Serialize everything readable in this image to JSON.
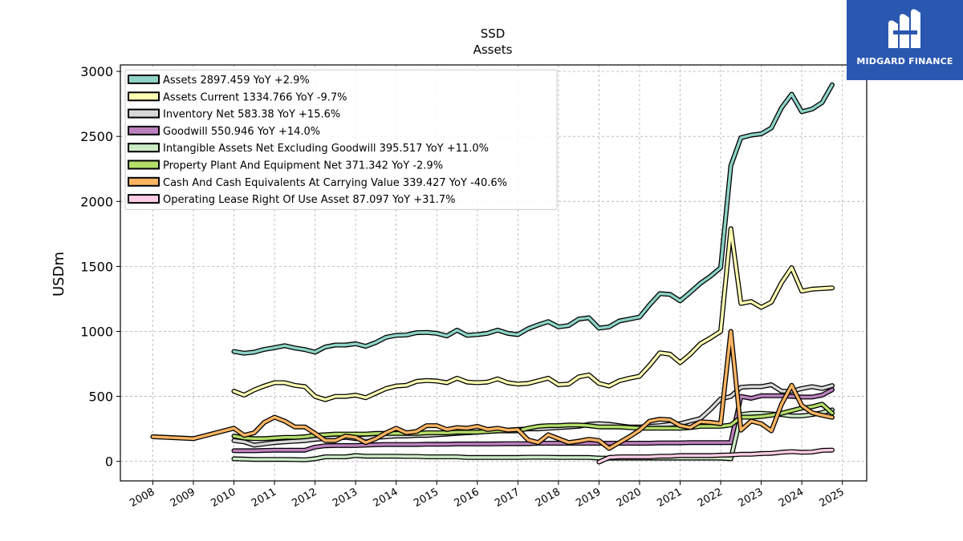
{
  "brand": {
    "name": "MIDGARD FINANCE",
    "bg_color": "#2a57b0"
  },
  "chart_data": {
    "type": "line",
    "title": "SSD",
    "subtitle": "Assets",
    "ylabel": "USDm",
    "xlabel": "",
    "ylim": [
      -150,
      3050
    ],
    "xlim": [
      2007.2,
      2025.6
    ],
    "yticks": [
      0,
      500,
      1000,
      1500,
      2000,
      2500,
      3000
    ],
    "xticks": [
      2008,
      2009,
      2010,
      2011,
      2012,
      2013,
      2014,
      2015,
      2016,
      2017,
      2018,
      2019,
      2020,
      2021,
      2022,
      2023,
      2024,
      2025
    ],
    "grid": true,
    "legend_position": "top-left",
    "series": [
      {
        "name": "Assets  2897.459 YoY +2.9%",
        "color": "#8dd3c7",
        "x": [
          2010.0,
          2010.25,
          2010.5,
          2010.75,
          2011.0,
          2011.25,
          2011.5,
          2011.75,
          2012.0,
          2012.25,
          2012.5,
          2012.75,
          2013.0,
          2013.25,
          2013.5,
          2013.75,
          2014.0,
          2014.25,
          2014.5,
          2014.75,
          2015.0,
          2015.25,
          2015.5,
          2015.75,
          2016.0,
          2016.25,
          2016.5,
          2016.75,
          2017.0,
          2017.25,
          2017.5,
          2017.75,
          2018.0,
          2018.25,
          2018.5,
          2018.75,
          2019.0,
          2019.25,
          2019.5,
          2019.75,
          2020.0,
          2020.25,
          2020.5,
          2020.75,
          2021.0,
          2021.25,
          2021.5,
          2021.75,
          2022.0,
          2022.25,
          2022.5,
          2022.75,
          2023.0,
          2023.25,
          2023.5,
          2023.75,
          2024.0,
          2024.25,
          2024.5,
          2024.75
        ],
        "y": [
          845,
          832,
          840,
          862,
          875,
          890,
          872,
          860,
          840,
          880,
          895,
          895,
          905,
          885,
          915,
          955,
          970,
          972,
          990,
          992,
          985,
          965,
          1010,
          970,
          975,
          985,
          1010,
          985,
          975,
          1020,
          1050,
          1075,
          1035,
          1045,
          1095,
          1105,
          1025,
          1035,
          1080,
          1095,
          1110,
          1205,
          1290,
          1285,
          1235,
          1300,
          1370,
          1425,
          1490,
          2275,
          2490,
          2510,
          2520,
          2565,
          2720,
          2825,
          2690,
          2710,
          2760,
          2897
        ]
      },
      {
        "name": "Assets Current  1334.766 YoY -9.7%",
        "color": "#ffffb3",
        "x": [
          2010.0,
          2010.25,
          2010.5,
          2010.75,
          2011.0,
          2011.25,
          2011.5,
          2011.75,
          2012.0,
          2012.25,
          2012.5,
          2012.75,
          2013.0,
          2013.25,
          2013.5,
          2013.75,
          2014.0,
          2014.25,
          2014.5,
          2014.75,
          2015.0,
          2015.25,
          2015.5,
          2015.75,
          2016.0,
          2016.25,
          2016.5,
          2016.75,
          2017.0,
          2017.25,
          2017.5,
          2017.75,
          2018.0,
          2018.25,
          2018.5,
          2018.75,
          2019.0,
          2019.25,
          2019.5,
          2019.75,
          2020.0,
          2020.25,
          2020.5,
          2020.75,
          2021.0,
          2021.25,
          2021.5,
          2021.75,
          2022.0,
          2022.25,
          2022.5,
          2022.75,
          2023.0,
          2023.25,
          2023.5,
          2023.75,
          2024.0,
          2024.25,
          2024.5,
          2024.75
        ],
        "y": [
          540,
          510,
          550,
          580,
          605,
          605,
          585,
          575,
          500,
          475,
          500,
          500,
          510,
          490,
          525,
          560,
          580,
          585,
          615,
          622,
          618,
          605,
          640,
          610,
          605,
          610,
          635,
          605,
          595,
          600,
          620,
          640,
          590,
          595,
          650,
          665,
          600,
          580,
          620,
          640,
          655,
          740,
          835,
          825,
          760,
          825,
          905,
          950,
          1000,
          1790,
          1215,
          1230,
          1185,
          1225,
          1375,
          1490,
          1310,
          1325,
          1330,
          1335
        ]
      },
      {
        "name": "Inventory Net  583.38 YoY +15.6%",
        "color": "#d9d9d9",
        "x": [
          2010.0,
          2010.25,
          2010.5,
          2010.75,
          2011.0,
          2011.25,
          2011.5,
          2011.75,
          2012.0,
          2012.25,
          2012.5,
          2012.75,
          2013.0,
          2013.25,
          2013.5,
          2013.75,
          2014.0,
          2014.25,
          2014.5,
          2014.75,
          2015.0,
          2015.25,
          2015.5,
          2015.75,
          2016.0,
          2016.25,
          2016.5,
          2016.75,
          2017.0,
          2017.25,
          2017.5,
          2017.75,
          2018.0,
          2018.25,
          2018.5,
          2018.75,
          2019.0,
          2019.25,
          2019.5,
          2019.75,
          2020.0,
          2020.25,
          2020.5,
          2020.75,
          2021.0,
          2021.25,
          2021.5,
          2021.75,
          2022.0,
          2022.25,
          2022.5,
          2022.75,
          2023.0,
          2023.25,
          2023.5,
          2023.75,
          2024.0,
          2024.25,
          2024.5,
          2024.75
        ],
        "y": [
          160,
          150,
          125,
          135,
          145,
          150,
          155,
          160,
          170,
          175,
          180,
          185,
          175,
          180,
          185,
          190,
          195,
          195,
          200,
          200,
          205,
          210,
          215,
          220,
          225,
          230,
          235,
          240,
          245,
          250,
          250,
          255,
          260,
          265,
          270,
          285,
          290,
          285,
          275,
          265,
          265,
          270,
          275,
          285,
          290,
          310,
          330,
          400,
          480,
          500,
          570,
          575,
          575,
          590,
          540,
          540,
          560,
          575,
          560,
          583
        ]
      },
      {
        "name": "Goodwill  550.946 YoY +14.0%",
        "color": "#bc80bd",
        "x": [
          2010.0,
          2010.25,
          2010.5,
          2010.75,
          2011.0,
          2011.25,
          2011.5,
          2011.75,
          2012.0,
          2012.25,
          2012.5,
          2012.75,
          2013.0,
          2013.25,
          2013.5,
          2013.75,
          2014.0,
          2014.25,
          2014.5,
          2014.75,
          2015.0,
          2015.25,
          2015.5,
          2015.75,
          2016.0,
          2016.25,
          2016.5,
          2016.75,
          2017.0,
          2017.25,
          2017.5,
          2017.75,
          2018.0,
          2018.25,
          2018.5,
          2018.75,
          2019.0,
          2019.25,
          2019.5,
          2019.75,
          2020.0,
          2020.25,
          2020.5,
          2020.75,
          2021.0,
          2021.25,
          2021.5,
          2021.75,
          2022.0,
          2022.25,
          2022.5,
          2022.75,
          2023.0,
          2023.25,
          2023.5,
          2023.75,
          2024.0,
          2024.25,
          2024.5,
          2024.75
        ],
        "y": [
          82,
          82,
          82,
          84,
          86,
          86,
          86,
          86,
          110,
          120,
          122,
          122,
          122,
          125,
          128,
          130,
          130,
          130,
          130,
          132,
          132,
          132,
          134,
          134,
          134,
          134,
          135,
          136,
          136,
          136,
          140,
          140,
          140,
          140,
          140,
          140,
          140,
          140,
          140,
          140,
          140,
          140,
          142,
          142,
          142,
          145,
          145,
          145,
          145,
          145,
          500,
          485,
          505,
          505,
          505,
          500,
          495,
          495,
          510,
          551
        ]
      },
      {
        "name": "Intangible Assets Net Excluding Goodwill  395.517 YoY +11.0%",
        "color": "#ccebc5",
        "x": [
          2010.0,
          2010.25,
          2010.5,
          2010.75,
          2011.0,
          2011.25,
          2011.5,
          2011.75,
          2012.0,
          2012.25,
          2012.5,
          2012.75,
          2013.0,
          2013.25,
          2013.5,
          2013.75,
          2014.0,
          2014.25,
          2014.5,
          2014.75,
          2015.0,
          2015.25,
          2015.5,
          2015.75,
          2016.0,
          2016.25,
          2016.5,
          2016.75,
          2017.0,
          2017.25,
          2017.5,
          2017.75,
          2018.0,
          2018.25,
          2018.5,
          2018.75,
          2019.0,
          2019.25,
          2019.5,
          2019.75,
          2020.0,
          2020.25,
          2020.5,
          2020.75,
          2021.0,
          2021.25,
          2021.5,
          2021.75,
          2022.0,
          2022.25,
          2022.5,
          2022.75,
          2023.0,
          2023.25,
          2023.5,
          2023.75,
          2024.0,
          2024.25,
          2024.5,
          2024.75
        ],
        "y": [
          20,
          18,
          15,
          15,
          15,
          15,
          14,
          12,
          20,
          35,
          35,
          35,
          45,
          40,
          40,
          40,
          40,
          38,
          38,
          35,
          35,
          35,
          35,
          30,
          30,
          30,
          30,
          30,
          30,
          32,
          32,
          32,
          30,
          30,
          30,
          30,
          25,
          25,
          25,
          25,
          25,
          25,
          25,
          25,
          25,
          25,
          25,
          25,
          25,
          20,
          360,
          370,
          370,
          365,
          360,
          350,
          350,
          360,
          375,
          396
        ]
      },
      {
        "name": "Property Plant And Equipment Net  371.342 YoY -2.9%",
        "color": "#b3de69",
        "x": [
          2010.0,
          2010.25,
          2010.5,
          2010.75,
          2011.0,
          2011.25,
          2011.5,
          2011.75,
          2012.0,
          2012.25,
          2012.5,
          2012.75,
          2013.0,
          2013.25,
          2013.5,
          2013.75,
          2014.0,
          2014.25,
          2014.5,
          2014.75,
          2015.0,
          2015.25,
          2015.5,
          2015.75,
          2016.0,
          2016.25,
          2016.5,
          2016.75,
          2017.0,
          2017.25,
          2017.5,
          2017.75,
          2018.0,
          2018.25,
          2018.5,
          2018.75,
          2019.0,
          2019.25,
          2019.5,
          2019.75,
          2020.0,
          2020.25,
          2020.5,
          2020.75,
          2021.0,
          2021.25,
          2021.5,
          2021.75,
          2022.0,
          2022.25,
          2022.5,
          2022.75,
          2023.0,
          2023.25,
          2023.5,
          2023.75,
          2024.0,
          2024.25,
          2024.5,
          2024.75
        ],
        "y": [
          195,
          180,
          175,
          175,
          180,
          185,
          185,
          190,
          200,
          205,
          210,
          210,
          210,
          210,
          215,
          215,
          215,
          215,
          215,
          220,
          220,
          220,
          225,
          225,
          225,
          230,
          235,
          235,
          235,
          255,
          270,
          275,
          275,
          280,
          280,
          275,
          265,
          265,
          265,
          260,
          255,
          255,
          255,
          255,
          255,
          260,
          270,
          270,
          270,
          280,
          340,
          340,
          345,
          355,
          370,
          390,
          410,
          420,
          440,
          371
        ]
      },
      {
        "name": "Cash And Cash Equivalents At Carrying Value  339.427 YoY -40.6%",
        "color": "#fdb462",
        "x": [
          2008.0,
          2009.0,
          2010.0,
          2010.25,
          2010.5,
          2010.75,
          2011.0,
          2011.25,
          2011.5,
          2011.75,
          2012.0,
          2012.25,
          2012.5,
          2012.75,
          2013.0,
          2013.25,
          2013.5,
          2013.75,
          2014.0,
          2014.25,
          2014.5,
          2014.75,
          2015.0,
          2015.25,
          2015.5,
          2015.75,
          2016.0,
          2016.25,
          2016.5,
          2016.75,
          2017.0,
          2017.25,
          2017.5,
          2017.75,
          2018.0,
          2018.25,
          2018.5,
          2018.75,
          2019.0,
          2019.25,
          2019.5,
          2019.75,
          2020.0,
          2020.25,
          2020.5,
          2020.75,
          2021.0,
          2021.25,
          2021.5,
          2021.75,
          2022.0,
          2022.25,
          2022.5,
          2022.75,
          2023.0,
          2023.25,
          2023.5,
          2023.75,
          2024.0,
          2024.25,
          2024.5,
          2024.75
        ],
        "y": [
          190,
          175,
          255,
          200,
          220,
          300,
          340,
          310,
          265,
          265,
          215,
          160,
          160,
          195,
          185,
          145,
          175,
          220,
          255,
          220,
          230,
          275,
          275,
          245,
          260,
          255,
          270,
          245,
          255,
          240,
          245,
          165,
          145,
          205,
          175,
          145,
          155,
          170,
          160,
          100,
          145,
          190,
          240,
          310,
          325,
          320,
          275,
          260,
          305,
          300,
          290,
          1000,
          240,
          310,
          290,
          235,
          440,
          585,
          430,
          375,
          355,
          339
        ]
      },
      {
        "name": "Operating Lease Right Of Use Asset  87.097 YoY +31.7%",
        "color": "#fccde5",
        "x": [
          2019.0,
          2019.25,
          2019.5,
          2019.75,
          2020.0,
          2020.25,
          2020.5,
          2020.75,
          2021.0,
          2021.25,
          2021.5,
          2021.75,
          2022.0,
          2022.25,
          2022.5,
          2022.75,
          2023.0,
          2023.25,
          2023.5,
          2023.75,
          2024.0,
          2024.25,
          2024.5,
          2024.75
        ],
        "y": [
          -5,
          30,
          35,
          35,
          35,
          35,
          40,
          40,
          45,
          45,
          45,
          45,
          48,
          50,
          55,
          55,
          60,
          62,
          70,
          75,
          70,
          72,
          85,
          87
        ]
      }
    ]
  }
}
